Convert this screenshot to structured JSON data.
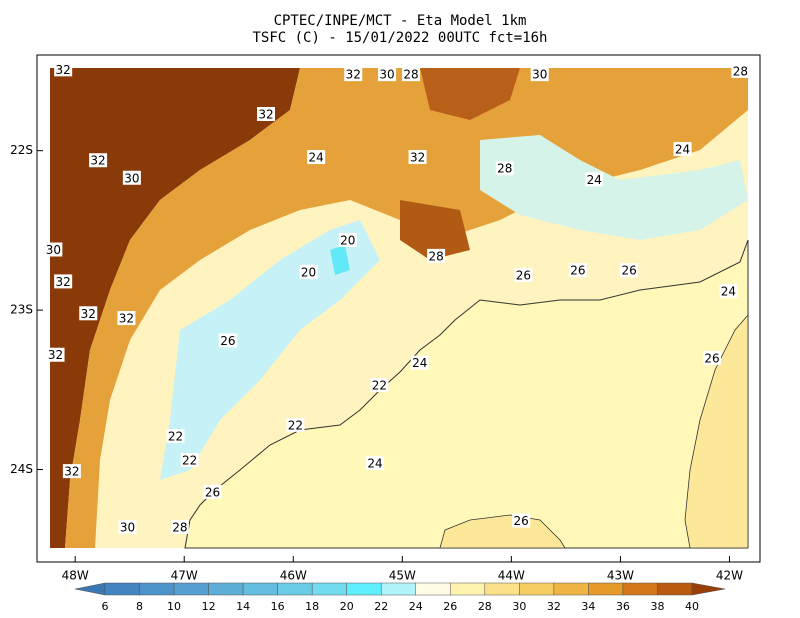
{
  "chart_data": {
    "type": "map",
    "title": "CPTEC/INPE/MCT -  Eta Model 1km",
    "subtitle": "TSFC (C) - 15/01/2022 00UTC fct=16h",
    "xlim": [
      -48.35,
      -41.72
    ],
    "ylim": [
      -24.58,
      -21.4
    ],
    "xticks": [
      {
        "value": -48,
        "label": "48W"
      },
      {
        "value": -47,
        "label": "47W"
      },
      {
        "value": -46,
        "label": "46W"
      },
      {
        "value": -45,
        "label": "45W"
      },
      {
        "value": -44,
        "label": "44W"
      },
      {
        "value": -43,
        "label": "43W"
      },
      {
        "value": -42,
        "label": "42W"
      }
    ],
    "yticks": [
      {
        "value": -22,
        "label": "22S"
      },
      {
        "value": -23,
        "label": "23S"
      },
      {
        "value": -24,
        "label": "24S"
      }
    ],
    "colorbar": {
      "levels": [
        6,
        8,
        10,
        12,
        14,
        16,
        18,
        20,
        22,
        24,
        26,
        28,
        30,
        32,
        34,
        36,
        38,
        40
      ],
      "colors": [
        "#3a78b4",
        "#4285c0",
        "#4b93c9",
        "#569fd0",
        "#5daed6",
        "#64bde0",
        "#6acbe6",
        "#73dbee",
        "#5ef0ff",
        "#b0f4fa",
        "#fffde6",
        "#fff3b0",
        "#fbe08a",
        "#f5cc60",
        "#eeb545",
        "#e59a2a",
        "#d2781b",
        "#b85a10",
        "#9a3e08"
      ]
    },
    "contour_labels": [
      {
        "lon": -48.11,
        "lat": -21.49,
        "value": 32
      },
      {
        "lon": -45.45,
        "lat": -21.52,
        "value": 32
      },
      {
        "lon": -45.14,
        "lat": -21.52,
        "value": 30
      },
      {
        "lon": -44.92,
        "lat": -21.52,
        "value": 28
      },
      {
        "lon": -43.74,
        "lat": -21.52,
        "value": 30
      },
      {
        "lon": -41.9,
        "lat": -21.5,
        "value": 28
      },
      {
        "lon": -47.79,
        "lat": -22.06,
        "value": 32
      },
      {
        "lon": -47.48,
        "lat": -22.17,
        "value": 30
      },
      {
        "lon": -46.25,
        "lat": -21.77,
        "value": 32
      },
      {
        "lon": -45.79,
        "lat": -22.04,
        "value": 24
      },
      {
        "lon": -44.86,
        "lat": -22.04,
        "value": 32
      },
      {
        "lon": -44.06,
        "lat": -22.11,
        "value": 28
      },
      {
        "lon": -43.24,
        "lat": -22.18,
        "value": 24
      },
      {
        "lon": -42.43,
        "lat": -21.99,
        "value": 24
      },
      {
        "lon": -48.2,
        "lat": -22.62,
        "value": 30
      },
      {
        "lon": -48.11,
        "lat": -22.82,
        "value": 32
      },
      {
        "lon": -47.88,
        "lat": -23.02,
        "value": 32
      },
      {
        "lon": -47.53,
        "lat": -23.05,
        "value": 32
      },
      {
        "lon": -48.18,
        "lat": -23.28,
        "value": 32
      },
      {
        "lon": -45.5,
        "lat": -22.56,
        "value": 20
      },
      {
        "lon": -45.86,
        "lat": -22.76,
        "value": 20
      },
      {
        "lon": -44.69,
        "lat": -22.66,
        "value": 28
      },
      {
        "lon": -43.89,
        "lat": -22.78,
        "value": 26
      },
      {
        "lon": -43.39,
        "lat": -22.75,
        "value": 26
      },
      {
        "lon": -42.92,
        "lat": -22.75,
        "value": 26
      },
      {
        "lon": -42.01,
        "lat": -22.88,
        "value": 24
      },
      {
        "lon": -42.16,
        "lat": -23.3,
        "value": 26
      },
      {
        "lon": -44.84,
        "lat": -23.33,
        "value": 24
      },
      {
        "lon": -45.25,
        "lat": -23.96,
        "value": 24
      },
      {
        "lon": -45.98,
        "lat": -23.72,
        "value": 22
      },
      {
        "lon": -46.74,
        "lat": -24.14,
        "value": 26
      },
      {
        "lon": -48.03,
        "lat": -24.01,
        "value": 32
      },
      {
        "lon": -47.52,
        "lat": -24.36,
        "value": 30
      },
      {
        "lon": -47.04,
        "lat": -24.36,
        "value": 28
      },
      {
        "lon": -43.91,
        "lat": -24.32,
        "value": 26
      },
      {
        "lon": -46.95,
        "lat": -23.94,
        "value": 22
      },
      {
        "lon": -47.08,
        "lat": -23.79,
        "value": 22
      },
      {
        "lon": -46.6,
        "lat": -23.19,
        "value": 26
      },
      {
        "lon": -45.21,
        "lat": -23.47,
        "value": 22
      }
    ]
  }
}
